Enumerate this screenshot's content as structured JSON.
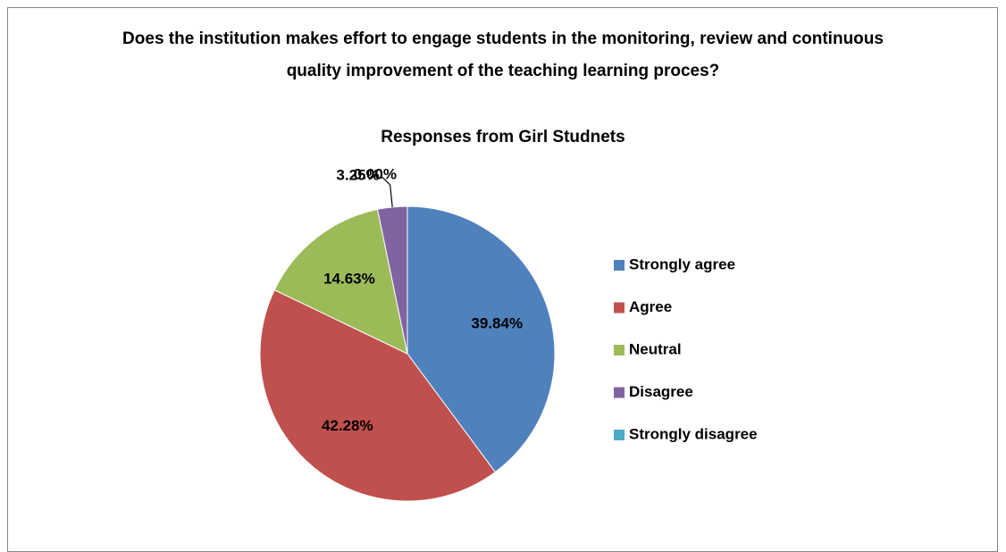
{
  "chart_data": {
    "type": "pie",
    "title": "Does the institution makes effort to engage students in the monitoring, review and continuous quality improvement of the teaching learning proces?",
    "subtitle": "Responses from Girl Studnets",
    "categories": [
      "Strongly agree",
      "Agree",
      "Neutral",
      "Disagree",
      "Strongly disagree"
    ],
    "values": [
      39.84,
      42.28,
      14.63,
      3.25,
      0.0
    ],
    "value_labels": [
      "39.84%",
      "42.28%",
      "14.63%",
      "3.25%",
      "0.00%"
    ],
    "colors": [
      "#4f81bd",
      "#c0504d",
      "#9bbb59",
      "#8064a2",
      "#4bacc6"
    ],
    "legend": "right"
  }
}
